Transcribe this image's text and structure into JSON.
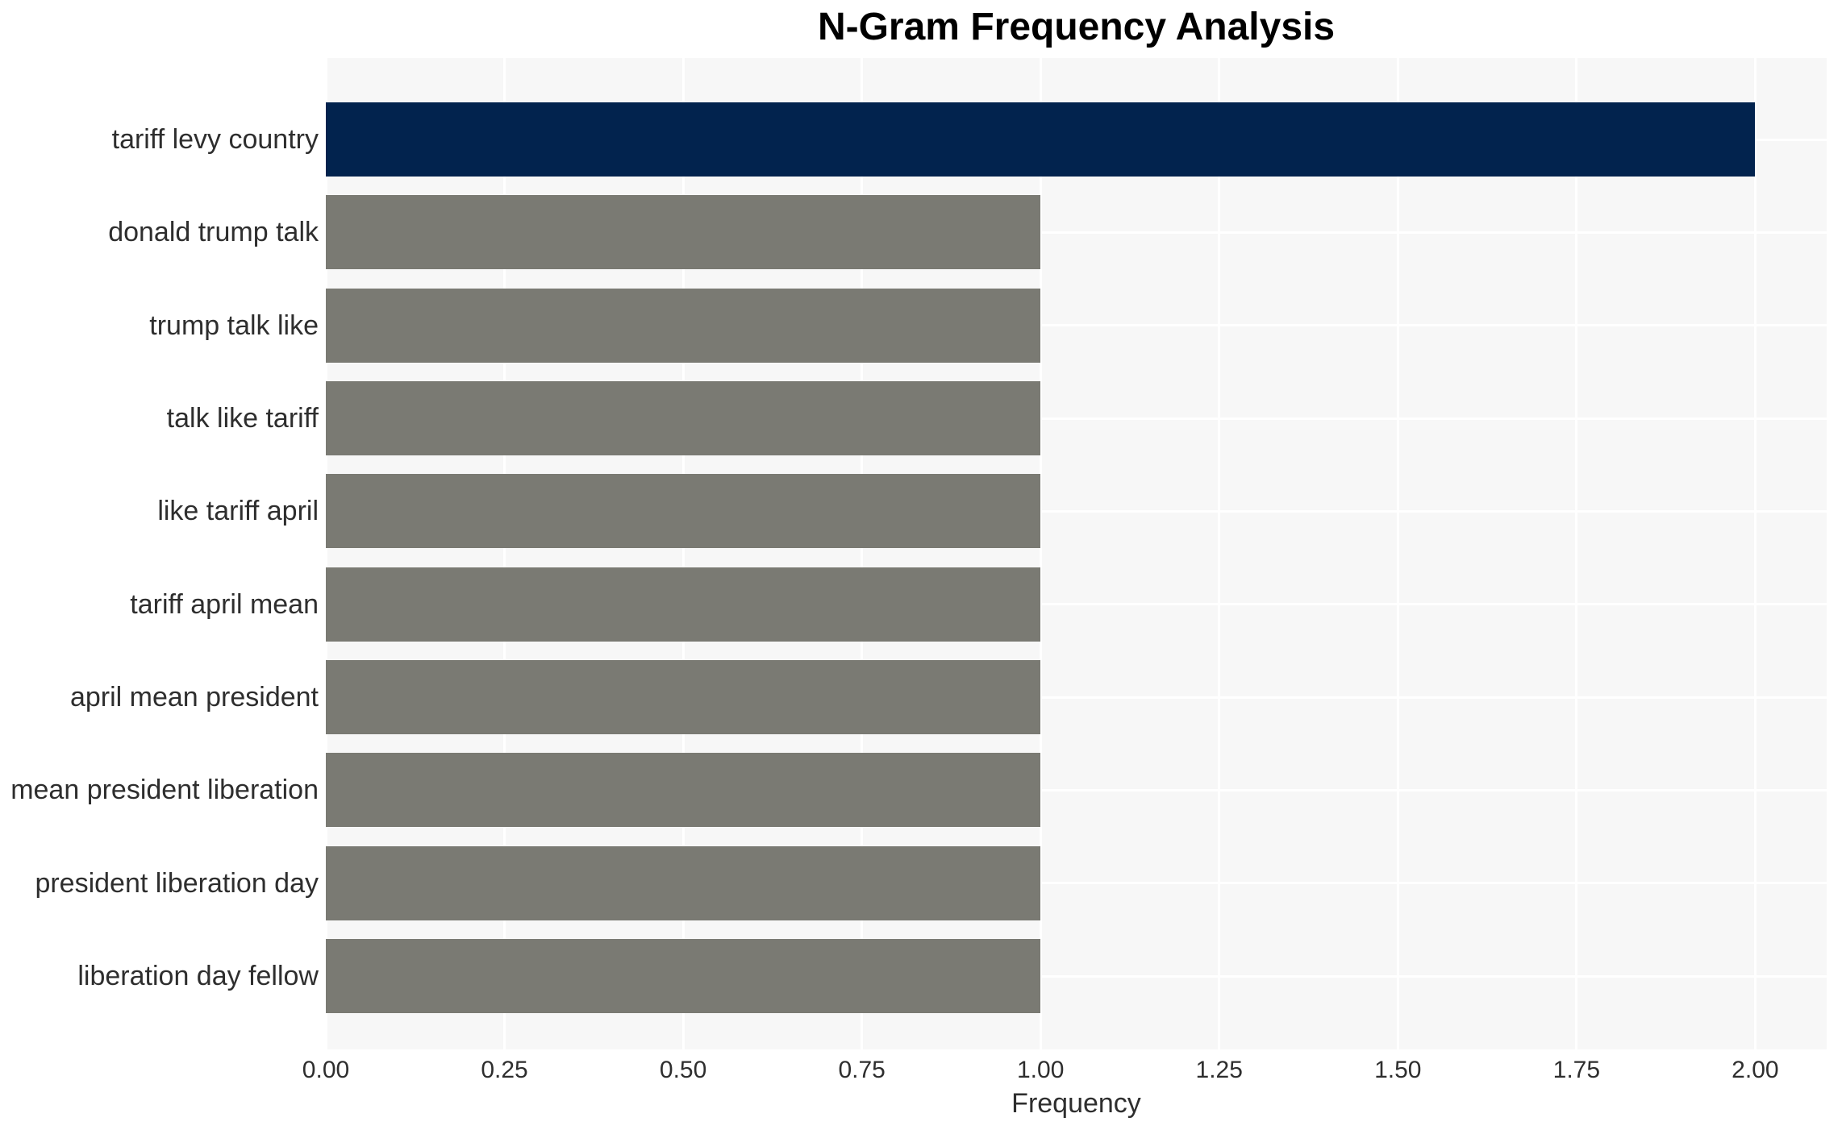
{
  "chart_data": {
    "type": "bar",
    "orientation": "horizontal",
    "title": "N-Gram Frequency Analysis",
    "xlabel": "Frequency",
    "ylabel": "",
    "categories": [
      "tariff levy country",
      "donald trump talk",
      "trump talk like",
      "talk like tariff",
      "like tariff april",
      "tariff april mean",
      "april mean president",
      "mean president liberation",
      "president liberation day",
      "liberation day fellow"
    ],
    "values": [
      2,
      1,
      1,
      1,
      1,
      1,
      1,
      1,
      1,
      1
    ],
    "bar_colors": [
      "#02234E",
      "#7A7A73",
      "#7A7A73",
      "#7A7A73",
      "#7A7A73",
      "#7A7A73",
      "#7A7A73",
      "#7A7A73",
      "#7A7A73",
      "#7A7A73"
    ],
    "xlim": [
      0,
      2.1
    ],
    "xticks": [
      0,
      0.25,
      0.5,
      0.75,
      1,
      1.25,
      1.5,
      1.75,
      2
    ],
    "xtick_labels": [
      "0.00",
      "0.25",
      "0.50",
      "0.75",
      "1.00",
      "1.25",
      "1.50",
      "1.75",
      "2.00"
    ],
    "grid": true,
    "legend": false,
    "colors": {
      "highlight_bar": "#02234E",
      "default_bar": "#7A7A73",
      "plot_background": "#F7F7F7",
      "gridline": "#FFFFFF",
      "tick_text": "#2E2E2E",
      "title_text": "#000000"
    }
  }
}
